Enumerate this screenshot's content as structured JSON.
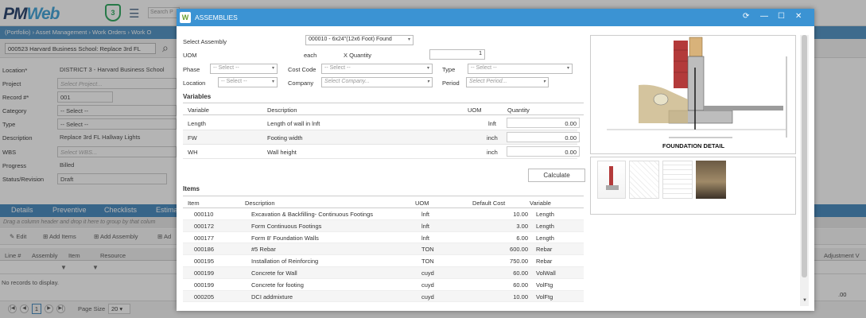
{
  "app": {
    "logo_text": "PM",
    "logo_web": "Web",
    "shield_count": "3",
    "search_placeholder": "Search P"
  },
  "breadcrumb": "(Portfolio) › Asset Management › Work Orders › Work O",
  "record_selector": "000523 Harvard Business School: Replace 3rd FL",
  "form": {
    "location_label": "Location*",
    "location_value": "DISTRICT 3 - Harvard Business School",
    "project_label": "Project",
    "project_value": "Select Project...",
    "record_label": "Record #*",
    "record_value": "001",
    "category_label": "Category",
    "category_value": "-- Select --",
    "type_label": "Type",
    "type_value": "-- Select --",
    "description_label": "Description",
    "description_value": "Replace 3rd FL Hallway Lights",
    "wbs_label": "WBS",
    "wbs_value": "Select WBS...",
    "progress_label": "Progress",
    "progress_value": "Billed",
    "status_label": "Status/Revision",
    "status_value": "Draft"
  },
  "tabs": [
    "Details",
    "Preventive",
    "Checklists",
    "Estima"
  ],
  "group_hint": "Drag a column header and drop it here to group by that colum",
  "grid_toolbar": {
    "edit": "Edit",
    "add_items": "Add Items",
    "add_assembly": "Add Assembly",
    "ad": "Ad"
  },
  "grid_headers": {
    "line": "Line #",
    "assembly": "Assembly",
    "item": "Item",
    "resource": "Resource",
    "adjustment": "Adjustment V"
  },
  "no_records": "No records to display.",
  "adjustment_value": ".00",
  "pager": {
    "page": "1",
    "page_size_label": "Page Size",
    "page_size": "20"
  },
  "modal": {
    "title": "ASSEMBLIES",
    "select_assembly_label": "Select Assembly",
    "select_assembly_value": "000010 - 6x24\"(12x6 Foot) Found",
    "uom_label": "UOM",
    "uom_value": "each",
    "quantity_label": "X Quantity",
    "quantity_value": "1",
    "phase_label": "Phase",
    "phase_value": "-- Select --",
    "cost_code_label": "Cost Code",
    "cost_code_value": "-- Select --",
    "type_label": "Type",
    "type_value": "-- Select --",
    "location_label": "Location",
    "location_value": "-- Select --",
    "company_label": "Company",
    "company_value": "Select Company...",
    "period_label": "Period",
    "period_value": "Select Period...",
    "variables_title": "Variables",
    "variables_headers": {
      "variable": "Variable",
      "description": "Description",
      "uom": "UOM",
      "quantity": "Quantity"
    },
    "variables": [
      {
        "variable": "Length",
        "description": "Length of wall in lnft",
        "uom": "lnft",
        "quantity": "0.00"
      },
      {
        "variable": "FW",
        "description": "Footing width",
        "uom": "inch",
        "quantity": "0.00"
      },
      {
        "variable": "WH",
        "description": "Wall height",
        "uom": "inch",
        "quantity": "0.00"
      }
    ],
    "calculate_label": "Calculate",
    "items_title": "Items",
    "items_headers": {
      "item": "Item",
      "description": "Description",
      "uom": "UOM",
      "default_cost": "Default Cost",
      "variable": "Variable"
    },
    "items": [
      {
        "item": "000110",
        "description": "Excavation & Backfilling- Continuous Footings",
        "uom": "lnft",
        "cost": "10.00",
        "variable": "Length"
      },
      {
        "item": "000172",
        "description": "Form Continuous Footings",
        "uom": "lnft",
        "cost": "3.00",
        "variable": "Length"
      },
      {
        "item": "000177",
        "description": "Form 8' Foundation Walls",
        "uom": "lnft",
        "cost": "6.00",
        "variable": "Length"
      },
      {
        "item": "000186",
        "description": "#5 Rebar",
        "uom": "TON",
        "cost": "600.00",
        "variable": "Rebar"
      },
      {
        "item": "000195",
        "description": "Installation of Reinforcing",
        "uom": "TON",
        "cost": "750.00",
        "variable": "Rebar"
      },
      {
        "item": "000199",
        "description": "Concrete for Wall",
        "uom": "cuyd",
        "cost": "60.00",
        "variable": "VolWall"
      },
      {
        "item": "000199",
        "description": "Concrete for footing",
        "uom": "cuyd",
        "cost": "60.00",
        "variable": "VolFtg"
      },
      {
        "item": "000205",
        "description": "DCI addmixture",
        "uom": "cuyd",
        "cost": "10.00",
        "variable": "VolFtg"
      }
    ],
    "drawing_title": "FOUNDATION DETAIL"
  }
}
